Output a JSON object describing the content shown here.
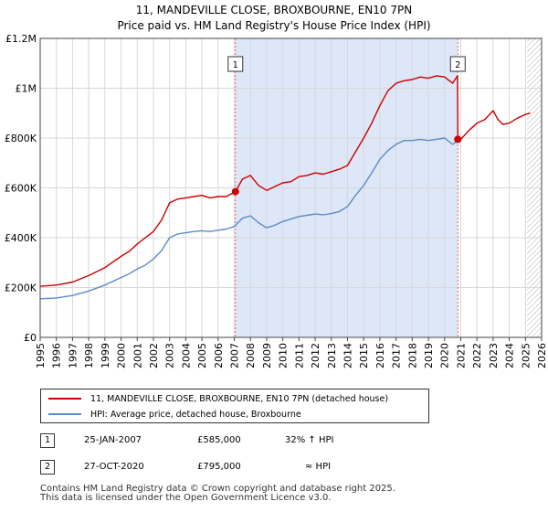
{
  "chart_data": {
    "type": "line",
    "title": "11, MANDEVILLE CLOSE, BROXBOURNE, EN10 7PN",
    "subtitle": "Price paid vs. HM Land Registry's House Price Index (HPI)",
    "x_ticks": [
      "1995",
      "1996",
      "1997",
      "1998",
      "1999",
      "2000",
      "2001",
      "2002",
      "2003",
      "2004",
      "2005",
      "2006",
      "2007",
      "2008",
      "2009",
      "2010",
      "2011",
      "2012",
      "2013",
      "2014",
      "2015",
      "2016",
      "2017",
      "2018",
      "2019",
      "2020",
      "2021",
      "2022",
      "2023",
      "2024",
      "2025",
      "2026"
    ],
    "y_ticks": [
      "£0",
      "£200K",
      "£400K",
      "£600K",
      "£800K",
      "£1M",
      "£1.2M"
    ],
    "y_tick_values": [
      0,
      200000,
      400000,
      600000,
      800000,
      1000000,
      1200000
    ],
    "xlim": [
      1995,
      2026
    ],
    "ylim": [
      0,
      1200000
    ],
    "ownership_period": [
      2007.07,
      2020.82
    ],
    "future_start": 2025.1,
    "colors": {
      "property": "#cc0000",
      "hpi": "#5b8cc7",
      "shade": "#dde7f7",
      "vline": "#e06666"
    },
    "series": [
      {
        "name": "11, MANDEVILLE CLOSE, BROXBOURNE, EN10 7PN (detached house)",
        "color": "#cc0000",
        "x": [
          1995,
          1996,
          1997,
          1998,
          1999,
          2000,
          2000.5,
          2001,
          2001.5,
          2002,
          2002.5,
          2003,
          2003.5,
          2004,
          2004.5,
          2005,
          2005.5,
          2006,
          2006.5,
          2007.07,
          2007.5,
          2008,
          2008.5,
          2009,
          2009.5,
          2010,
          2010.5,
          2011,
          2011.5,
          2012,
          2012.5,
          2013,
          2013.5,
          2014,
          2014.5,
          2015,
          2015.5,
          2016,
          2016.5,
          2017,
          2017.5,
          2018,
          2018.5,
          2019,
          2019.5,
          2020,
          2020.5,
          2020.8,
          2020.82,
          2021,
          2021.5,
          2022,
          2022.5,
          2023,
          2023.3,
          2023.6,
          2024,
          2024.5,
          2025,
          2025.3
        ],
        "values": [
          205000,
          210000,
          222000,
          248000,
          280000,
          325000,
          345000,
          375000,
          400000,
          425000,
          470000,
          540000,
          555000,
          560000,
          565000,
          570000,
          560000,
          565000,
          565000,
          585000,
          635000,
          650000,
          610000,
          590000,
          605000,
          620000,
          625000,
          645000,
          650000,
          660000,
          655000,
          665000,
          675000,
          690000,
          745000,
          800000,
          860000,
          930000,
          990000,
          1020000,
          1030000,
          1035000,
          1045000,
          1040000,
          1050000,
          1045000,
          1020000,
          1050000,
          795000,
          795000,
          830000,
          860000,
          875000,
          910000,
          875000,
          855000,
          860000,
          880000,
          895000,
          900000
        ]
      },
      {
        "name": "HPI: Average price, detached house, Broxbourne",
        "color": "#5b8cc7",
        "x": [
          1995,
          1996,
          1997,
          1998,
          1999,
          2000,
          2000.5,
          2001,
          2001.5,
          2002,
          2002.5,
          2003,
          2003.5,
          2004,
          2004.5,
          2005,
          2005.5,
          2006,
          2006.5,
          2007,
          2007.5,
          2008,
          2008.5,
          2009,
          2009.5,
          2010,
          2010.5,
          2011,
          2011.5,
          2012,
          2012.5,
          2013,
          2013.5,
          2014,
          2014.5,
          2015,
          2015.5,
          2016,
          2016.5,
          2017,
          2017.5,
          2018,
          2018.5,
          2019,
          2019.5,
          2020,
          2020.5,
          2020.82
        ],
        "values": [
          155000,
          158000,
          168000,
          186000,
          210000,
          240000,
          255000,
          275000,
          290000,
          315000,
          348000,
          400000,
          415000,
          420000,
          425000,
          428000,
          425000,
          430000,
          435000,
          445000,
          478000,
          488000,
          460000,
          440000,
          450000,
          465000,
          475000,
          485000,
          490000,
          495000,
          492000,
          497000,
          505000,
          525000,
          570000,
          610000,
          660000,
          715000,
          750000,
          775000,
          790000,
          790000,
          795000,
          790000,
          795000,
          800000,
          775000,
          790000
        ]
      }
    ],
    "sales": [
      {
        "x": 2007.07,
        "y": 585000,
        "label": "1"
      },
      {
        "x": 2020.82,
        "y": 795000,
        "label": "2"
      }
    ]
  },
  "legend": {
    "property": "11, MANDEVILLE CLOSE, BROXBOURNE, EN10 7PN (detached house)",
    "hpi": "HPI: Average price, detached house, Broxbourne"
  },
  "sales_table": [
    {
      "num": "1",
      "date": "25-JAN-2007",
      "price": "£585,000",
      "hpi": "32% ↑ HPI"
    },
    {
      "num": "2",
      "date": "27-OCT-2020",
      "price": "£795,000",
      "hpi": "≈ HPI"
    }
  ],
  "footer": {
    "line1": "Contains HM Land Registry data © Crown copyright and database right 2025.",
    "line2": "This data is licensed under the Open Government Licence v3.0."
  }
}
